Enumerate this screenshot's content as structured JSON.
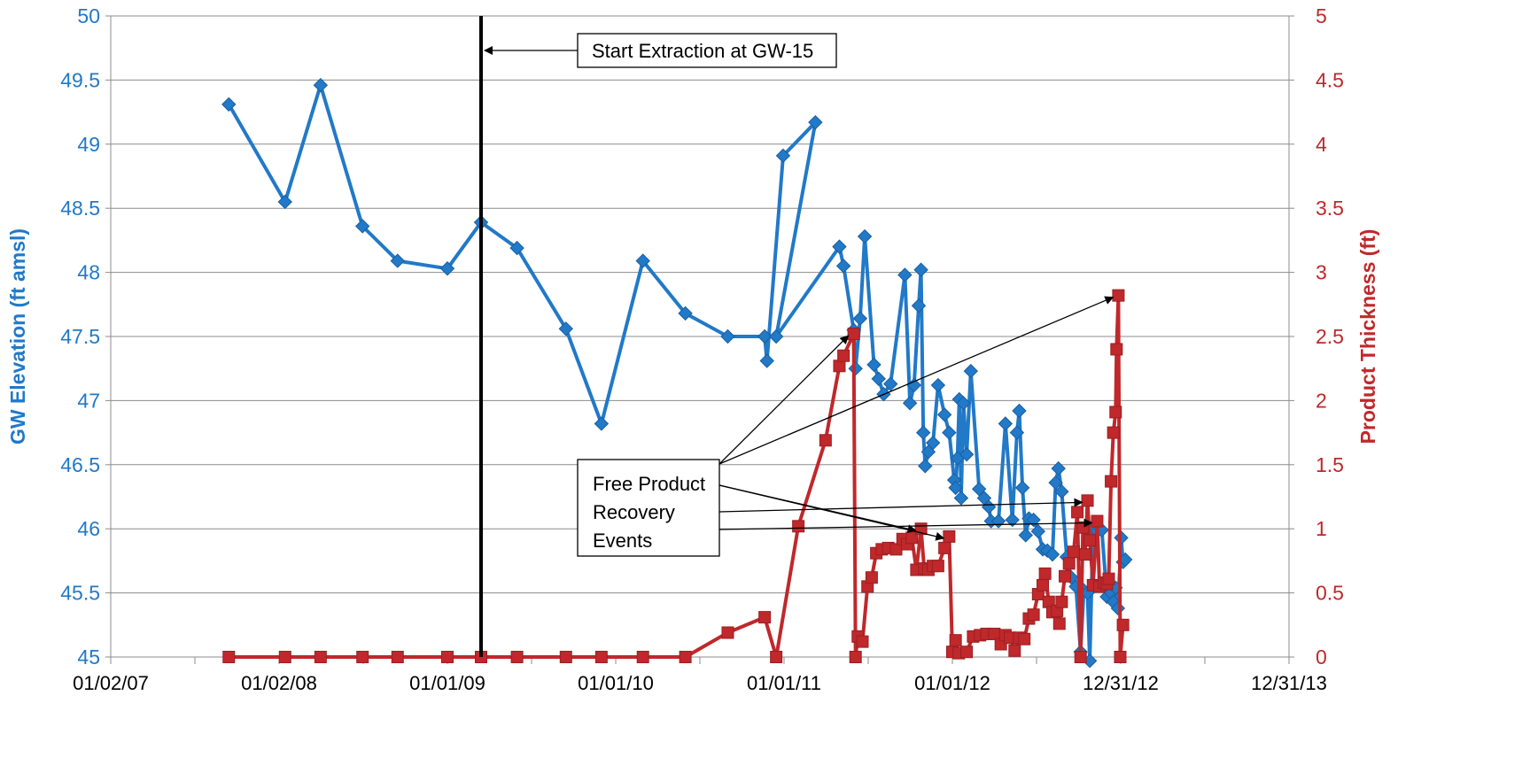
{
  "chart_data": {
    "type": "line",
    "title": "",
    "xlabel": "",
    "x_ticks": [
      "01/02/07",
      "01/02/08",
      "01/01/09",
      "01/01/10",
      "01/01/11",
      "01/01/12",
      "12/31/12",
      "12/31/13"
    ],
    "xlim": [
      "2007-01-02",
      "2013-12-31"
    ],
    "y_left": {
      "label": "GW Elevation (ft amsl)",
      "lim": [
        45,
        50
      ],
      "ticks": [
        "45",
        "45.5",
        "46",
        "46.5",
        "47",
        "47.5",
        "48",
        "48.5",
        "49",
        "49.5",
        "50"
      ],
      "color": "#2179C8"
    },
    "y_right": {
      "label": "Product Thickness (ft)",
      "lim": [
        0,
        5
      ],
      "ticks": [
        "0",
        "0.5",
        "1",
        "1.5",
        "2",
        "2.5",
        "3",
        "3.5",
        "4",
        "4.5",
        "5"
      ],
      "color": "#C0282B"
    },
    "grid": "horizontal",
    "series": [
      {
        "axis": "left",
        "color": "#2179C8",
        "marker": "diamond",
        "points": [
          [
            "2007-09-15",
            49.31
          ],
          [
            "2008-01-15",
            48.55
          ],
          [
            "2008-04-01",
            49.46
          ],
          [
            "2008-07-01",
            48.36
          ],
          [
            "2008-09-15",
            48.09
          ],
          [
            "2009-01-01",
            48.03
          ],
          [
            "2009-03-15",
            48.39
          ],
          [
            "2009-06-01",
            48.19
          ],
          [
            "2009-09-15",
            47.56
          ],
          [
            "2009-12-01",
            46.82
          ],
          [
            "2010-03-01",
            48.09
          ],
          [
            "2010-06-01",
            47.68
          ],
          [
            "2010-09-01",
            47.5
          ],
          [
            "2010-11-20",
            47.5
          ],
          [
            "2010-11-25",
            47.31
          ],
          [
            "2010-12-30",
            48.91
          ],
          [
            "2011-03-10",
            49.17
          ],
          [
            "2010-12-15",
            47.5
          ],
          [
            "2011-05-01",
            48.2
          ],
          [
            "2011-05-10",
            48.05
          ],
          [
            "2011-06-01",
            47.55
          ],
          [
            "2011-06-05",
            47.25
          ],
          [
            "2011-06-15",
            47.64
          ],
          [
            "2011-06-25",
            48.28
          ],
          [
            "2011-07-15",
            47.28
          ],
          [
            "2011-07-25",
            47.17
          ],
          [
            "2011-08-05",
            47.05
          ],
          [
            "2011-08-20",
            47.13
          ],
          [
            "2011-09-20",
            47.98
          ],
          [
            "2011-10-01",
            46.98
          ],
          [
            "2011-10-10",
            47.12
          ],
          [
            "2011-10-20",
            47.74
          ],
          [
            "2011-10-25",
            48.02
          ],
          [
            "2011-10-30",
            46.75
          ],
          [
            "2011-11-03",
            46.49
          ],
          [
            "2011-11-10",
            46.6
          ],
          [
            "2011-11-20",
            46.67
          ],
          [
            "2011-12-01",
            47.12
          ],
          [
            "2011-12-15",
            46.89
          ],
          [
            "2011-12-25",
            46.75
          ],
          [
            "2012-01-05",
            46.38
          ],
          [
            "2012-01-08",
            46.32
          ],
          [
            "2012-01-12",
            46.55
          ],
          [
            "2012-01-16",
            47.01
          ],
          [
            "2012-01-20",
            46.24
          ],
          [
            "2012-01-25",
            46.98
          ],
          [
            "2012-02-01",
            46.58
          ],
          [
            "2012-02-10",
            47.23
          ],
          [
            "2012-02-28",
            46.31
          ],
          [
            "2012-03-10",
            46.24
          ],
          [
            "2012-03-20",
            46.17
          ],
          [
            "2012-03-25",
            46.06
          ],
          [
            "2012-04-10",
            46.06
          ],
          [
            "2012-04-25",
            46.82
          ],
          [
            "2012-05-10",
            46.07
          ],
          [
            "2012-05-20",
            46.75
          ],
          [
            "2012-05-25",
            46.92
          ],
          [
            "2012-06-01",
            46.32
          ],
          [
            "2012-06-08",
            45.95
          ],
          [
            "2012-06-15",
            46.08
          ],
          [
            "2012-06-25",
            46.07
          ],
          [
            "2012-07-05",
            45.98
          ],
          [
            "2012-07-15",
            45.84
          ],
          [
            "2012-07-25",
            45.83
          ],
          [
            "2012-08-05",
            45.8
          ],
          [
            "2012-08-12",
            46.36
          ],
          [
            "2012-08-18",
            46.47
          ],
          [
            "2012-08-25",
            46.29
          ],
          [
            "2012-09-05",
            45.78
          ],
          [
            "2012-09-15",
            45.62
          ],
          [
            "2012-09-25",
            45.55
          ],
          [
            "2012-10-05",
            45.04
          ],
          [
            "2012-10-12",
            45.52
          ],
          [
            "2012-10-20",
            45.5
          ],
          [
            "2012-10-25",
            44.97
          ],
          [
            "2012-11-01",
            46.02
          ],
          [
            "2012-11-10",
            45.98
          ],
          [
            "2012-11-20",
            45.99
          ],
          [
            "2012-12-01",
            45.47
          ],
          [
            "2012-12-10",
            45.5
          ],
          [
            "2012-12-15",
            45.43
          ],
          [
            "2012-12-20",
            45.54
          ],
          [
            "2012-12-25",
            45.38
          ],
          [
            "2013-01-01",
            45.93
          ],
          [
            "2013-01-05",
            45.74
          ],
          [
            "2013-01-10",
            45.76
          ]
        ]
      },
      {
        "axis": "right",
        "color": "#C0282B",
        "marker": "square",
        "points": [
          [
            "2007-09-15",
            0
          ],
          [
            "2008-01-15",
            0
          ],
          [
            "2008-04-01",
            0
          ],
          [
            "2008-07-01",
            0
          ],
          [
            "2008-09-15",
            0
          ],
          [
            "2009-01-01",
            0
          ],
          [
            "2009-03-15",
            0
          ],
          [
            "2009-06-01",
            0
          ],
          [
            "2009-09-15",
            0
          ],
          [
            "2009-12-01",
            0
          ],
          [
            "2010-03-01",
            0
          ],
          [
            "2010-06-01",
            0
          ],
          [
            "2010-09-01",
            0.19
          ],
          [
            "2010-11-20",
            0.31
          ],
          [
            "2010-12-15",
            0
          ],
          [
            "2011-02-01",
            1.02
          ],
          [
            "2011-04-01",
            1.69
          ],
          [
            "2011-05-01",
            2.27
          ],
          [
            "2011-05-10",
            2.35
          ],
          [
            "2011-06-01",
            2.52
          ],
          [
            "2011-06-05",
            0
          ],
          [
            "2011-06-10",
            0.16
          ],
          [
            "2011-06-20",
            0.12
          ],
          [
            "2011-07-01",
            0.55
          ],
          [
            "2011-07-10",
            0.62
          ],
          [
            "2011-07-20",
            0.81
          ],
          [
            "2011-08-01",
            0.84
          ],
          [
            "2011-08-15",
            0.85
          ],
          [
            "2011-09-01",
            0.84
          ],
          [
            "2011-09-15",
            0.92
          ],
          [
            "2011-09-25",
            0.88
          ],
          [
            "2011-10-05",
            0.93
          ],
          [
            "2011-10-15",
            0.68
          ],
          [
            "2011-10-25",
            1.0
          ],
          [
            "2011-11-01",
            0.69
          ],
          [
            "2011-11-10",
            0.68
          ],
          [
            "2011-11-20",
            0.71
          ],
          [
            "2011-12-01",
            0.71
          ],
          [
            "2011-12-15",
            0.85
          ],
          [
            "2011-12-25",
            0.94
          ],
          [
            "2012-01-01",
            0.04
          ],
          [
            "2012-01-08",
            0.13
          ],
          [
            "2012-01-15",
            0.03
          ],
          [
            "2012-02-01",
            0.04
          ],
          [
            "2012-02-15",
            0.16
          ],
          [
            "2012-03-01",
            0.17
          ],
          [
            "2012-03-15",
            0.18
          ],
          [
            "2012-04-01",
            0.18
          ],
          [
            "2012-04-15",
            0.1
          ],
          [
            "2012-04-25",
            0.17
          ],
          [
            "2012-05-05",
            0.15
          ],
          [
            "2012-05-15",
            0.05
          ],
          [
            "2012-05-25",
            0.15
          ],
          [
            "2012-06-05",
            0.14
          ],
          [
            "2012-06-15",
            0.3
          ],
          [
            "2012-06-25",
            0.33
          ],
          [
            "2012-07-05",
            0.49
          ],
          [
            "2012-07-15",
            0.56
          ],
          [
            "2012-07-20",
            0.65
          ],
          [
            "2012-07-28",
            0.43
          ],
          [
            "2012-08-05",
            0.35
          ],
          [
            "2012-08-15",
            0.36
          ],
          [
            "2012-08-20",
            0.26
          ],
          [
            "2012-08-25",
            0.43
          ],
          [
            "2012-09-01",
            0.63
          ],
          [
            "2012-09-10",
            0.73
          ],
          [
            "2012-09-20",
            0.82
          ],
          [
            "2012-09-28",
            1.13
          ],
          [
            "2012-10-05",
            0
          ],
          [
            "2012-10-10",
            1.01
          ],
          [
            "2012-10-15",
            0.8
          ],
          [
            "2012-10-20",
            1.22
          ],
          [
            "2012-10-25",
            0.91
          ],
          [
            "2012-11-01",
            0.56
          ],
          [
            "2012-11-10",
            1.06
          ],
          [
            "2012-11-15",
            0.55
          ],
          [
            "2012-11-25",
            0.58
          ],
          [
            "2012-12-01",
            0.57
          ],
          [
            "2012-12-05",
            0.61
          ],
          [
            "2012-12-10",
            1.37
          ],
          [
            "2012-12-15",
            1.75
          ],
          [
            "2012-12-20",
            1.91
          ],
          [
            "2012-12-22",
            2.4
          ],
          [
            "2012-12-26",
            2.82
          ],
          [
            "2012-12-30",
            0
          ],
          [
            "2013-01-05",
            0.25
          ]
        ]
      }
    ],
    "annotations": [
      {
        "text": "Start Extraction at GW-15",
        "vline_date": "2009-03-15"
      },
      {
        "lines": [
          "Free Product",
          "Recovery",
          "Events"
        ]
      }
    ]
  }
}
